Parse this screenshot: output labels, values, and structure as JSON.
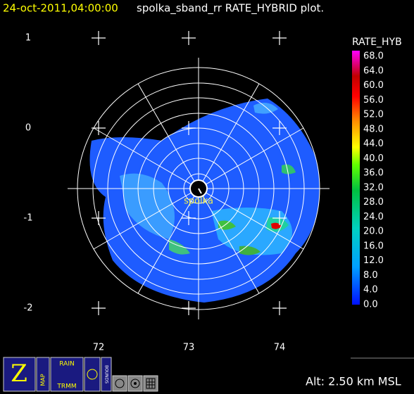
{
  "header": {
    "timestamp": "24-oct-2011,04:00:00",
    "title": "spolka_sband_rr RATE_HYBRID  plot."
  },
  "axes": {
    "y_labels": [
      "1",
      "0",
      "-1",
      "-2"
    ],
    "x_labels": [
      "72",
      "73",
      "74"
    ]
  },
  "colorbar": {
    "title": "RATE_HYB",
    "labels": [
      "68.0",
      "64.0",
      "60.0",
      "56.0",
      "52.0",
      "48.0",
      "44.0",
      "40.0",
      "36.0",
      "32.0",
      "28.0",
      "24.0",
      "20.0",
      "16.0",
      "12.0",
      "8.0",
      "4.0",
      "0.0"
    ]
  },
  "station": "spolka",
  "toolbar": {
    "map": "MAP",
    "rain": "RAIN",
    "trmm": "TRMM",
    "bounds": "BOUNDS"
  },
  "altitude": "Alt: 2.50 km MSL"
}
